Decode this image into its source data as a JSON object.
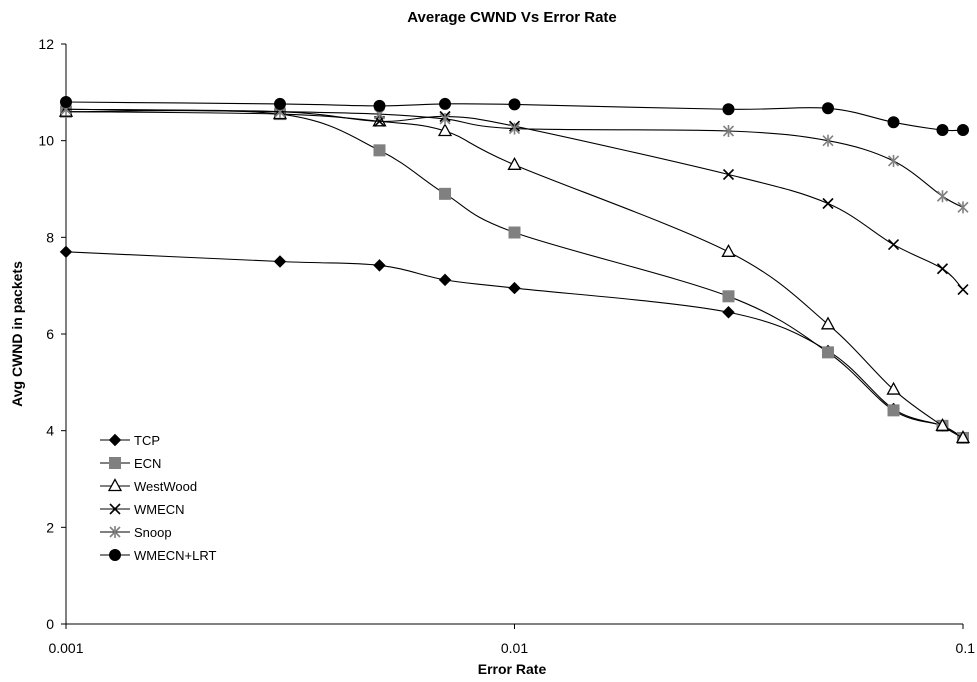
{
  "chart_data": {
    "type": "line",
    "title": "Average CWND Vs Error Rate",
    "xlabel": "Error Rate",
    "ylabel": "Avg CWND in packets",
    "x_scale": "log",
    "xlim": [
      0.001,
      0.1
    ],
    "ylim": [
      0,
      12
    ],
    "x_ticks": [
      {
        "value": 0.001,
        "label": "0.001"
      },
      {
        "value": 0.01,
        "label": "0.01"
      },
      {
        "value": 0.1,
        "label": "0.1"
      }
    ],
    "y_ticks": [
      {
        "value": 0,
        "label": "0"
      },
      {
        "value": 2,
        "label": "2"
      },
      {
        "value": 4,
        "label": "4"
      },
      {
        "value": 6,
        "label": "6"
      },
      {
        "value": 8,
        "label": "8"
      },
      {
        "value": 10,
        "label": "10"
      },
      {
        "value": 12,
        "label": "12"
      }
    ],
    "grid": {
      "horizontal": false,
      "vertical": false
    },
    "legend_position": "bottom-left",
    "x": [
      0.001,
      0.003,
      0.005,
      0.007,
      0.01,
      0.03,
      0.05,
      0.07,
      0.09,
      0.1
    ],
    "series": [
      {
        "name": "TCP",
        "marker": "diamond",
        "color": "#000000",
        "values": [
          7.7,
          7.5,
          7.42,
          7.12,
          6.95,
          6.45,
          5.65,
          4.45,
          4.1,
          3.85
        ]
      },
      {
        "name": "ECN",
        "marker": "square",
        "color": "#808080",
        "values": [
          10.6,
          10.55,
          9.8,
          8.9,
          8.1,
          6.78,
          5.62,
          4.42,
          4.1,
          3.85
        ]
      },
      {
        "name": "WestWood",
        "marker": "triangle",
        "color": "#000000",
        "values": [
          10.6,
          10.55,
          10.4,
          10.2,
          9.5,
          7.7,
          6.2,
          4.85,
          4.1,
          3.85
        ]
      },
      {
        "name": "WMECN",
        "marker": "x",
        "color": "#000000",
        "values": [
          10.65,
          10.6,
          10.4,
          10.5,
          10.3,
          9.3,
          8.7,
          7.85,
          7.35,
          6.92
        ]
      },
      {
        "name": "Snoop",
        "marker": "star",
        "color": "#808080",
        "values": [
          10.65,
          10.6,
          10.55,
          10.45,
          10.25,
          10.2,
          10.0,
          9.58,
          8.85,
          8.62
        ]
      },
      {
        "name": "WMECN+LRT",
        "marker": "circle",
        "color": "#000000",
        "values": [
          10.8,
          10.76,
          10.72,
          10.76,
          10.75,
          10.65,
          10.67,
          10.38,
          10.22,
          10.22
        ]
      }
    ]
  }
}
